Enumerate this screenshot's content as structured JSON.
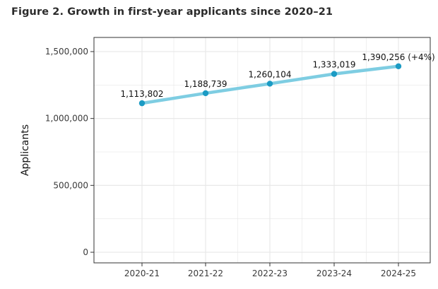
{
  "figure_title": "Figure 2. Growth in first-year applicants since 2020–21",
  "chart_data": {
    "type": "line",
    "title": "Figure 2. Growth in first-year applicants since 2020–21",
    "xlabel": "",
    "ylabel": "Applicants",
    "categories": [
      "2020-21",
      "2021-22",
      "2022-23",
      "2023-24",
      "2024-25"
    ],
    "series": [
      {
        "values": [
          1113802,
          1188739,
          1260104,
          1333019,
          1390256
        ],
        "labels": [
          "1,113,802",
          "1,188,739",
          "1,260,104",
          "1,333,019",
          "1,390,256 (+4%)"
        ]
      }
    ],
    "y_ticks": [
      0,
      500000,
      1000000,
      1500000
    ],
    "y_tick_labels": [
      "0",
      "500,000",
      "1,000,000",
      "1,500,000"
    ],
    "ylim": [
      0,
      1550000
    ],
    "grid": true,
    "legend": "none",
    "colors": {
      "line": "#7ecde2",
      "point": "#1b9bc4",
      "grid": "#e6e6e6",
      "border": "#333333"
    }
  }
}
